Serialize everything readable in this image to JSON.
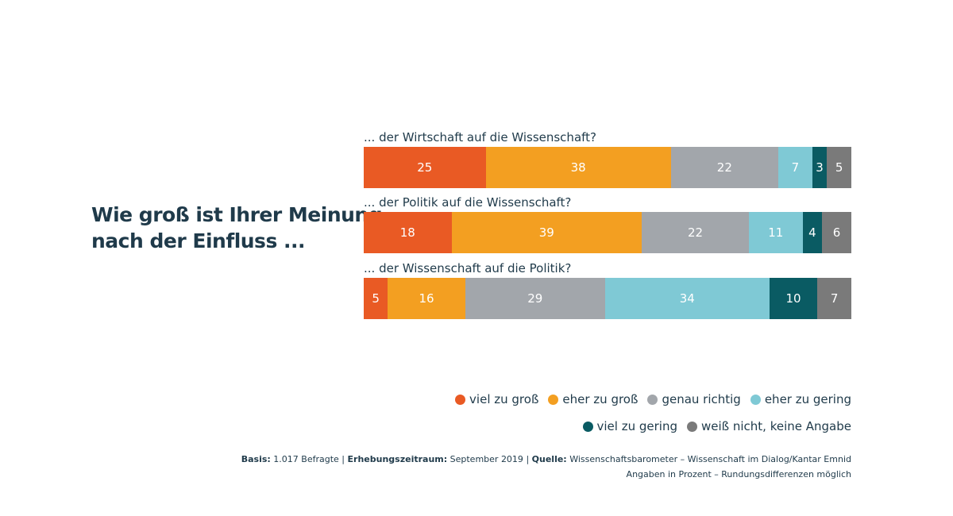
{
  "question": {
    "line1": "Wie groß ist Ihrer Meinung",
    "line2": "nach der Einfluss ..."
  },
  "colors": {
    "viel zu groß": "#e95a24",
    "eher zu groß": "#f39f21",
    "genau richtig": "#a2a6ab",
    "eher zu gering": "#7fc9d5",
    "viel zu gering": "#0a5b63",
    "weiß nicht, keine Angabe": "#7a7a7a"
  },
  "chart_data": {
    "type": "bar",
    "orientation": "horizontal-stacked-100",
    "unit": "Prozent",
    "categories": [
      "... der Wirtschaft auf die Wissenschaft?",
      "... der Politik auf die Wissenschaft?",
      "... der Wissenschaft auf die Politik?"
    ],
    "series": [
      {
        "name": "viel zu groß",
        "values": [
          25,
          18,
          5
        ]
      },
      {
        "name": "eher zu groß",
        "values": [
          38,
          39,
          16
        ]
      },
      {
        "name": "genau richtig",
        "values": [
          22,
          22,
          29
        ]
      },
      {
        "name": "eher zu gering",
        "values": [
          7,
          11,
          34
        ]
      },
      {
        "name": "viel zu gering",
        "values": [
          3,
          4,
          10
        ]
      },
      {
        "name": "weiß nicht, keine Angabe",
        "values": [
          5,
          6,
          7
        ]
      }
    ],
    "legend": "bottom-right",
    "grid": false
  },
  "source": {
    "basis_label": "Basis:",
    "basis_value": "1.017 Befragte",
    "period_label": "Erhebungszeitraum:",
    "period_value": "September 2019",
    "source_label": "Quelle:",
    "source_value": "Wissenschaftsbarometer – Wissenschaft im Dialog/Kantar Emnid",
    "separator": "|",
    "note": "Angaben in Prozent – Rundungsdifferenzen möglich"
  }
}
